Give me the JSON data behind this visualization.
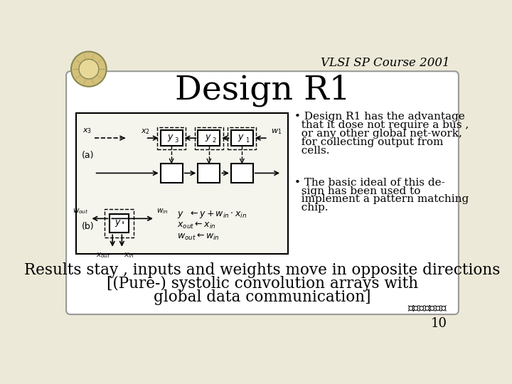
{
  "bg_color": "#ece9d8",
  "slide_bg": "#ece9d8",
  "title": "Design R1",
  "header_text": "VLSI SP Course 2001",
  "bullet1": "• Design R1 has the advantage that it dose not require a bus , or any other global net-work, for collecting output from cells.",
  "bullet2": "• The basic ideal of this design has been used to implement a pattern matching chip.",
  "footer_line1": "Results stay , inputs and weights move in opposite directions",
  "footer_line2": "[(Pure-) systolic convolution arrays with",
  "footer_line3": "global data communication]",
  "page_number": "10",
  "title_fontsize": 34,
  "header_fontsize": 12,
  "bullet_fontsize": 11,
  "footer_fontsize": 15.5
}
